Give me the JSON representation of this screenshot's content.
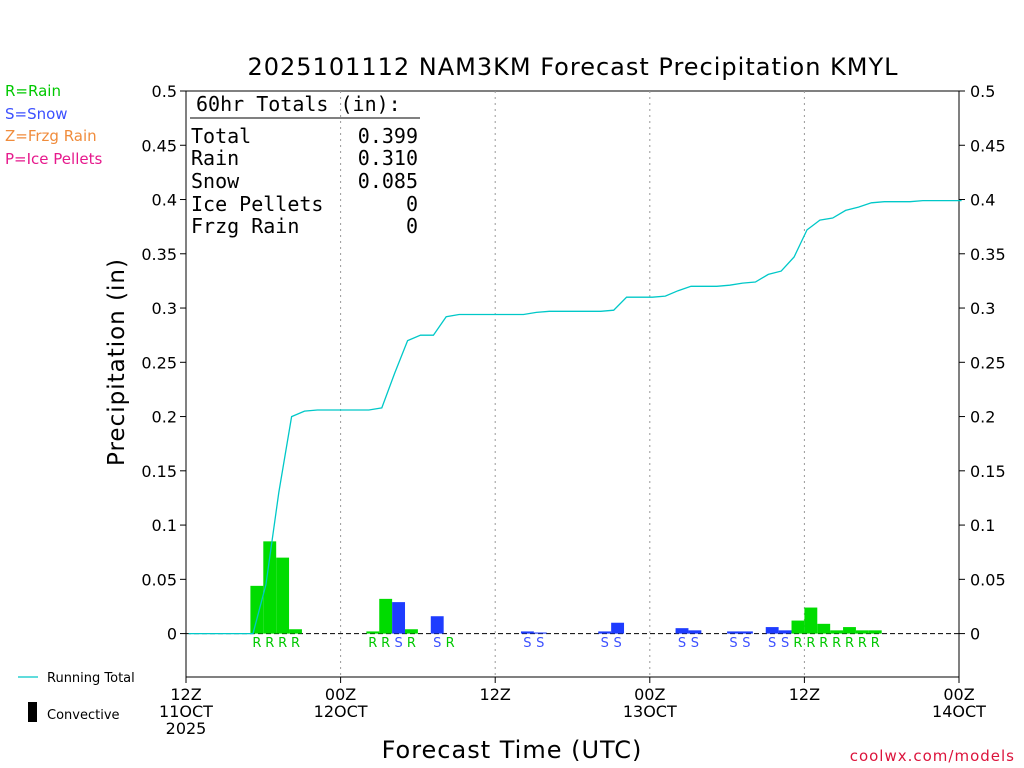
{
  "chart_data": {
    "type": "bar",
    "title": "2025101112 NAM3KM Forecast Precipitation KMYL",
    "xlabel": "Forecast Time (UTC)",
    "ylabel": "Precipitation (in)",
    "ylim": [
      -0.04,
      0.5
    ],
    "yticks": [
      0,
      0.05,
      0.1,
      0.15,
      0.2,
      0.25,
      0.3,
      0.35,
      0.4,
      0.45,
      0.5
    ],
    "ytick_labels": [
      "0",
      "0.05",
      "0.1",
      "0.15",
      "0.2",
      "0.25",
      "0.3",
      "0.35",
      "0.4",
      "0.45",
      "0.5"
    ],
    "xlim_hours": [
      0,
      60
    ],
    "xticks": [
      {
        "hour": 0,
        "line1": "12Z",
        "line2": "11OCT",
        "line3": "2025"
      },
      {
        "hour": 12,
        "line1": "00Z",
        "line2": "12OCT",
        "line3": ""
      },
      {
        "hour": 24,
        "line1": "12Z",
        "line2": "",
        "line3": ""
      },
      {
        "hour": 36,
        "line1": "00Z",
        "line2": "13OCT",
        "line3": ""
      },
      {
        "hour": 48,
        "line1": "12Z",
        "line2": "",
        "line3": ""
      },
      {
        "hour": 60,
        "line1": "00Z",
        "line2": "14OCT",
        "line3": ""
      }
    ],
    "gridlines_hours": [
      12,
      24,
      36,
      48
    ],
    "precip_bars": [
      {
        "hour": 6,
        "value": 0.044,
        "type": "R"
      },
      {
        "hour": 7,
        "value": 0.085,
        "type": "R"
      },
      {
        "hour": 8,
        "value": 0.07,
        "type": "R"
      },
      {
        "hour": 9,
        "value": 0.004,
        "type": "R"
      },
      {
        "hour": 15,
        "value": 0.002,
        "type": "R"
      },
      {
        "hour": 16,
        "value": 0.032,
        "type": "R"
      },
      {
        "hour": 17,
        "value": 0.029,
        "type": "S"
      },
      {
        "hour": 18,
        "value": 0.004,
        "type": "R"
      },
      {
        "hour": 20,
        "value": 0.016,
        "type": "S"
      },
      {
        "hour": 21,
        "value": 0.0,
        "type": "R"
      },
      {
        "hour": 27,
        "value": 0.002,
        "type": "S"
      },
      {
        "hour": 28,
        "value": 0.001,
        "type": "S"
      },
      {
        "hour": 33,
        "value": 0.002,
        "type": "S"
      },
      {
        "hour": 34,
        "value": 0.01,
        "type": "S"
      },
      {
        "hour": 39,
        "value": 0.005,
        "type": "S"
      },
      {
        "hour": 40,
        "value": 0.003,
        "type": "S"
      },
      {
        "hour": 43,
        "value": 0.002,
        "type": "S"
      },
      {
        "hour": 44,
        "value": 0.002,
        "type": "S"
      },
      {
        "hour": 46,
        "value": 0.006,
        "type": "S"
      },
      {
        "hour": 47,
        "value": 0.003,
        "type": "S"
      },
      {
        "hour": 48,
        "value": 0.012,
        "type": "R"
      },
      {
        "hour": 49,
        "value": 0.024,
        "type": "R"
      },
      {
        "hour": 50,
        "value": 0.009,
        "type": "R"
      },
      {
        "hour": 51,
        "value": 0.003,
        "type": "R"
      },
      {
        "hour": 52,
        "value": 0.006,
        "type": "R"
      },
      {
        "hour": 53,
        "value": 0.003,
        "type": "R"
      },
      {
        "hour": 54,
        "value": 0.003,
        "type": "R"
      }
    ],
    "running_total": {
      "name": "Running Total",
      "hours": [
        0,
        5,
        6,
        7,
        8,
        9,
        10,
        11,
        12,
        13,
        14,
        15,
        16,
        17,
        18,
        19,
        20,
        21,
        22,
        23,
        24,
        25,
        26,
        27,
        28,
        29,
        30,
        31,
        32,
        33,
        34,
        35,
        36,
        37,
        38,
        39,
        40,
        41,
        42,
        43,
        44,
        45,
        46,
        47,
        48,
        49,
        50,
        51,
        52,
        53,
        54,
        55,
        56,
        57,
        58,
        59,
        60
      ],
      "values": [
        0,
        0,
        0.045,
        0.13,
        0.2,
        0.205,
        0.206,
        0.206,
        0.206,
        0.206,
        0.206,
        0.208,
        0.24,
        0.27,
        0.275,
        0.275,
        0.292,
        0.294,
        0.294,
        0.294,
        0.294,
        0.294,
        0.294,
        0.296,
        0.297,
        0.297,
        0.297,
        0.297,
        0.297,
        0.298,
        0.31,
        0.31,
        0.31,
        0.311,
        0.316,
        0.32,
        0.32,
        0.32,
        0.321,
        0.323,
        0.324,
        0.331,
        0.334,
        0.347,
        0.372,
        0.381,
        0.383,
        0.39,
        0.393,
        0.397,
        0.398,
        0.398,
        0.398,
        0.399,
        0.399,
        0.399,
        0.399
      ]
    },
    "type_colors": {
      "R": "#00dc00",
      "S": "#1e3cff"
    },
    "label_colors": {
      "R": "#00c800",
      "S": "#3c50ff"
    }
  },
  "legend": {
    "rain": "R=Rain",
    "snow": "S=Snow",
    "frzg_rain": "Z=Frzg Rain",
    "ice_pellets": "P=Ice Pellets",
    "rain_color": "#00c800",
    "snow_color": "#3c50ff",
    "frzg_color": "#f08c3c",
    "ice_color": "#e6198c",
    "running_total": "Running Total",
    "convective": "Convective",
    "line_color": "#00c8c8"
  },
  "totals": {
    "header": "60hr Totals (in):",
    "total_label": "Total",
    "total_value": "0.399",
    "rain_label": "Rain",
    "rain_value": "0.310",
    "snow_label": "Snow",
    "snow_value": "0.085",
    "ice_label": "Ice Pellets",
    "ice_value": "0",
    "frzg_label": "Frzg Rain",
    "frzg_value": "0"
  },
  "credit": "coolwx.com/models",
  "credit_color": "#dc143c"
}
